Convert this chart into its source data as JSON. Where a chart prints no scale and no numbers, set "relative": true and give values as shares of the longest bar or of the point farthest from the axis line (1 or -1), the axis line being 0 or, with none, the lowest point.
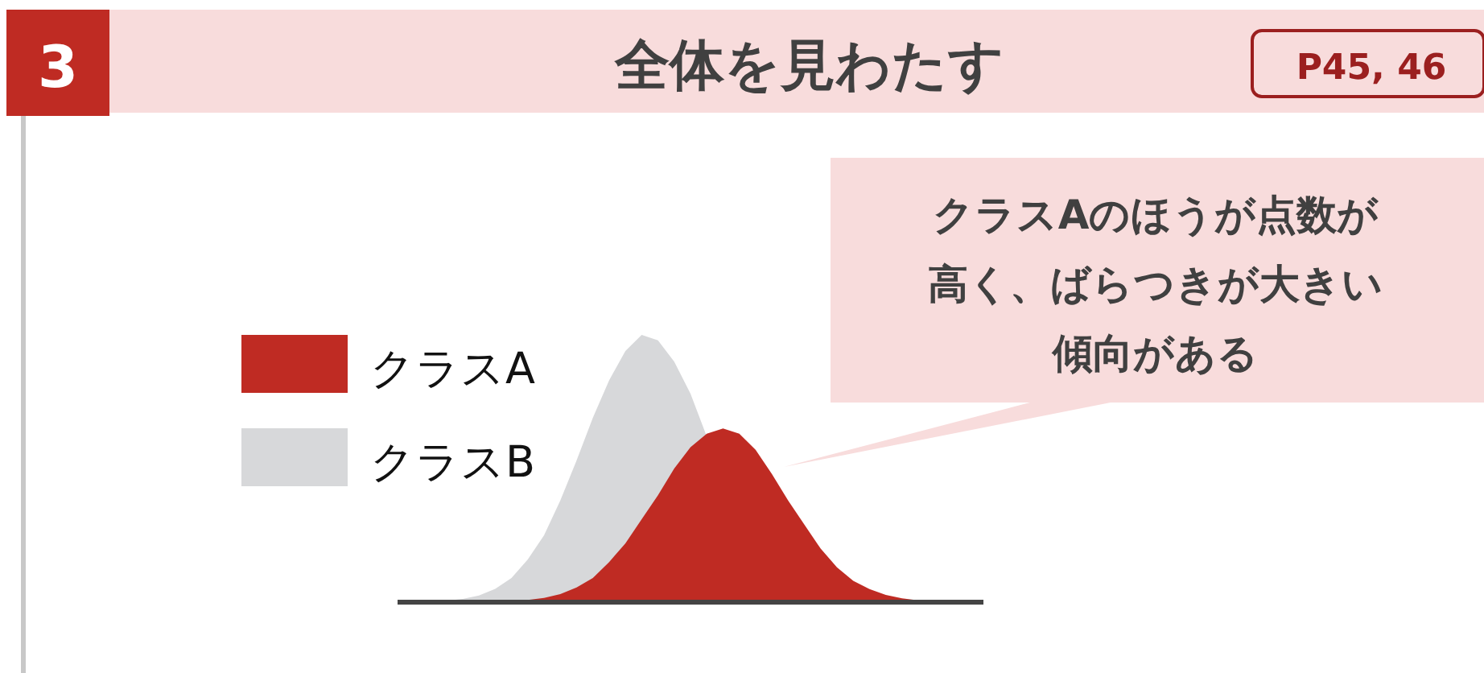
{
  "chart_data": {
    "type": "area",
    "title": "全体を見わたす",
    "relative": true,
    "legend": "left",
    "annotations": [
      "3",
      "P45, 46",
      "クラスAのほうが点数が",
      "高く、ばらつきが大きい",
      "傾向がある"
    ],
    "categories": [
      null,
      null,
      null,
      null,
      null,
      null,
      null,
      null,
      null,
      null,
      null,
      null,
      null,
      null,
      null,
      null,
      null,
      null,
      null,
      null,
      null,
      null,
      null,
      null,
      null,
      null,
      null,
      null,
      null,
      null,
      null,
      null,
      null,
      null,
      null,
      null,
      null
    ],
    "series": [
      {
        "name": "クラスA",
        "color": "#bf2b23",
        "values": [
          0,
          0,
          0,
          0,
          0,
          0.001,
          0.002,
          0.004,
          0.008,
          0.016,
          0.03,
          0.055,
          0.09,
          0.15,
          0.22,
          0.31,
          0.4,
          0.5,
          0.58,
          0.63,
          0.65,
          0.63,
          0.57,
          0.48,
          0.38,
          0.29,
          0.2,
          0.13,
          0.08,
          0.049,
          0.027,
          0.014,
          0.007,
          0.003,
          0.001,
          0,
          0
        ]
      },
      {
        "name": "クラスB",
        "color": "#d7d8da",
        "values": [
          0,
          0.001,
          0.002,
          0.005,
          0.012,
          0.025,
          0.05,
          0.09,
          0.16,
          0.25,
          0.38,
          0.53,
          0.69,
          0.83,
          0.94,
          1,
          0.98,
          0.9,
          0.78,
          0.62,
          null,
          null,
          null,
          null,
          null,
          null,
          null,
          null,
          null,
          null,
          null,
          null,
          null,
          null,
          null,
          null,
          null
        ]
      }
    ]
  }
}
